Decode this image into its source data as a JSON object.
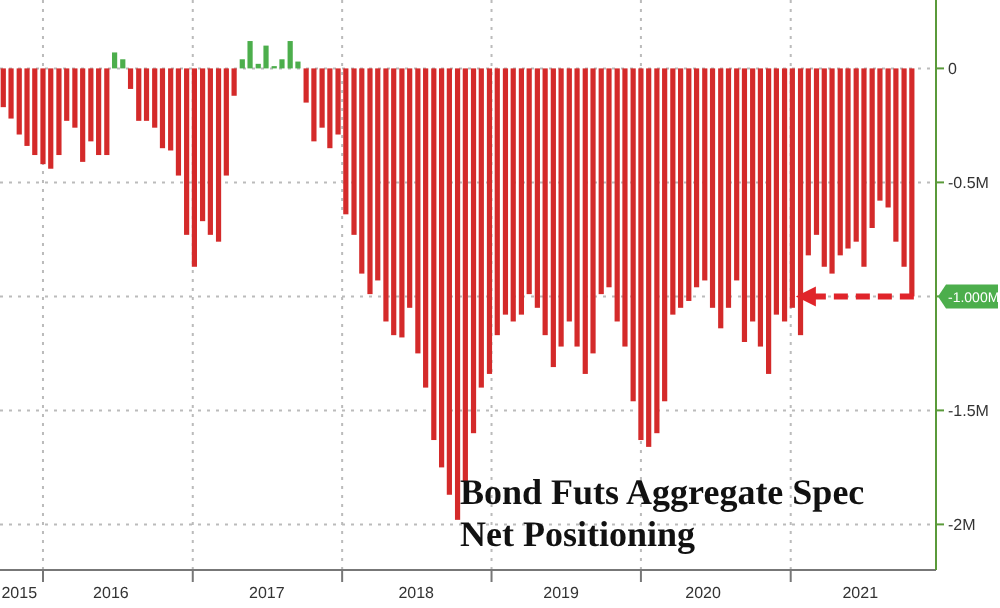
{
  "chart_data": {
    "type": "bar",
    "title": "Bond Futs Aggregate Spec Net Positioning",
    "x": [
      "2015-09-26",
      "2015-10-15",
      "2015-11-04",
      "2015-11-23",
      "2015-12-12",
      "2016-01-01",
      "2016-01-20",
      "2016-02-09",
      "2016-02-28",
      "2016-03-19",
      "2016-04-07",
      "2016-04-27",
      "2016-05-16",
      "2016-06-05",
      "2016-06-24",
      "2016-07-14",
      "2016-08-02",
      "2016-08-22",
      "2016-09-10",
      "2016-09-30",
      "2016-10-19",
      "2016-11-08",
      "2016-11-27",
      "2016-12-17",
      "2017-01-05",
      "2017-01-25",
      "2017-02-13",
      "2017-03-05",
      "2017-03-24",
      "2017-04-12",
      "2017-05-02",
      "2017-05-21",
      "2017-06-10",
      "2017-06-29",
      "2017-07-19",
      "2017-08-07",
      "2017-08-27",
      "2017-09-15",
      "2017-10-05",
      "2017-10-24",
      "2017-11-13",
      "2017-12-02",
      "2017-12-22",
      "2018-01-10",
      "2018-01-30",
      "2018-02-18",
      "2018-03-10",
      "2018-03-29",
      "2018-04-18",
      "2018-05-07",
      "2018-05-27",
      "2018-06-15",
      "2018-07-05",
      "2018-07-24",
      "2018-08-13",
      "2018-09-01",
      "2018-09-20",
      "2018-10-10",
      "2018-10-29",
      "2018-11-18",
      "2018-12-07",
      "2018-12-27",
      "2019-01-15",
      "2019-02-04",
      "2019-02-23",
      "2019-03-15",
      "2019-04-03",
      "2019-04-23",
      "2019-05-12",
      "2019-06-01",
      "2019-06-20",
      "2019-07-10",
      "2019-07-29",
      "2019-08-18",
      "2019-09-06",
      "2019-09-26",
      "2019-10-15",
      "2019-11-04",
      "2019-11-23",
      "2019-12-13",
      "2020-01-01",
      "2020-01-20",
      "2020-02-09",
      "2020-02-28",
      "2020-03-19",
      "2020-04-07",
      "2020-04-27",
      "2020-05-16",
      "2020-06-05",
      "2020-06-24",
      "2020-07-14",
      "2020-08-02",
      "2020-08-22",
      "2020-09-10",
      "2020-09-30",
      "2020-10-19",
      "2020-11-08",
      "2020-11-27",
      "2020-12-17",
      "2021-01-05",
      "2021-01-25",
      "2021-02-13",
      "2021-03-05",
      "2021-03-24",
      "2021-04-12",
      "2021-05-02",
      "2021-05-21",
      "2021-06-10",
      "2021-06-29",
      "2021-07-19",
      "2021-08-07",
      "2021-08-27",
      "2021-09-15",
      "2021-10-05",
      "2021-10-24"
    ],
    "series": [
      {
        "color": "#d42a2a",
        "values": [
          -0.17,
          -0.22,
          -0.29,
          -0.34,
          -0.38,
          -0.42,
          -0.44,
          -0.38,
          -0.23,
          -0.26,
          -0.41,
          -0.32,
          -0.38,
          -0.38,
          null,
          null,
          -0.09,
          -0.23,
          -0.23,
          -0.26,
          -0.35,
          -0.36,
          -0.47,
          -0.73,
          -0.87,
          -0.67,
          -0.73,
          -0.76,
          -0.47,
          -0.12,
          null,
          null,
          null,
          null,
          null,
          null,
          null,
          null,
          -0.15,
          -0.32,
          -0.26,
          -0.35,
          -0.29,
          -0.64,
          -0.73,
          -0.9,
          -0.99,
          -0.93,
          -1.11,
          -1.17,
          -1.18,
          -1.05,
          -1.25,
          -1.4,
          -1.63,
          -1.75,
          -1.87,
          -1.98,
          -1.81,
          -1.6,
          -1.4,
          -1.34,
          -1.17,
          -1.08,
          -1.11,
          -1.08,
          -0.99,
          -1.05,
          -1.17,
          -1.31,
          -1.22,
          -1.11,
          -1.22,
          -1.34,
          -1.25,
          -0.99,
          -0.96,
          -1.11,
          -1.22,
          -1.46,
          -1.63,
          -1.66,
          -1.6,
          -1.46,
          -1.08,
          -1.05,
          -1.02,
          -0.96,
          -0.93,
          -1.05,
          -1.14,
          -1.05,
          -0.93,
          -1.2,
          -1.11,
          -1.22,
          -1.34,
          -1.08,
          -1.11,
          -1.05,
          -1.17,
          -0.82,
          -0.73,
          -0.87,
          -0.9,
          -0.82,
          -0.79,
          -0.76,
          -0.87,
          -0.7,
          -0.58,
          -0.61,
          -0.76,
          -0.87,
          -1.0
        ]
      },
      {
        "color": "#4cae4c",
        "values": [
          null,
          null,
          null,
          null,
          null,
          null,
          null,
          null,
          null,
          null,
          null,
          null,
          null,
          null,
          0.07,
          0.04,
          null,
          null,
          null,
          null,
          null,
          null,
          null,
          null,
          null,
          null,
          null,
          null,
          null,
          null,
          0.04,
          0.12,
          0.02,
          0.1,
          0.01,
          0.04,
          0.12,
          0.03,
          null,
          null,
          null,
          null,
          null,
          null,
          null,
          null,
          null,
          null,
          null,
          null,
          null,
          null,
          null,
          null,
          null,
          null,
          null,
          null,
          null,
          null,
          null,
          null,
          null,
          null,
          null,
          null,
          null,
          null,
          null,
          null,
          null,
          null,
          null,
          null,
          null,
          null,
          null,
          null,
          null,
          null,
          null,
          null,
          null,
          null,
          null,
          null,
          null,
          null,
          null,
          null,
          null,
          null,
          null,
          null,
          null,
          null,
          null,
          null,
          null,
          null,
          null,
          null,
          null,
          null,
          null,
          null,
          null,
          null,
          null,
          null,
          null,
          null,
          null,
          null,
          null
        ]
      }
    ],
    "xlim": [
      "2015-09-18",
      "2021-12-22"
    ],
    "xticks": [
      {
        "value": "2015-11-04",
        "label": "2015"
      },
      {
        "value": "2016-01-01",
        "label": null
      },
      {
        "value": "2016-06-15",
        "label": "2016"
      },
      {
        "value": "2017-01-01",
        "label": null
      },
      {
        "value": "2017-07-01",
        "label": "2017"
      },
      {
        "value": "2018-01-01",
        "label": null
      },
      {
        "value": "2018-07-01",
        "label": "2018"
      },
      {
        "value": "2019-01-01",
        "label": null
      },
      {
        "value": "2019-06-20",
        "label": "2019"
      },
      {
        "value": "2020-01-01",
        "label": null
      },
      {
        "value": "2020-06-01",
        "label": "2020"
      },
      {
        "value": "2021-01-01",
        "label": null
      },
      {
        "value": "2021-06-20",
        "label": "2021"
      }
    ],
    "ylim": [
      -2.2,
      0.3
    ],
    "yticks": [
      {
        "value": 0,
        "label": "0"
      },
      {
        "value": -0.5,
        "label": "-0.5M"
      },
      {
        "value": -1,
        "label": null
      },
      {
        "value": -1.5,
        "label": "-1.5M"
      },
      {
        "value": -2,
        "label": "-2M"
      }
    ],
    "grid": true,
    "line_style": "dotted",
    "annotations": [
      {
        "text": "-1.000M",
        "x": "2021-10-24",
        "y": -1
      }
    ]
  }
}
